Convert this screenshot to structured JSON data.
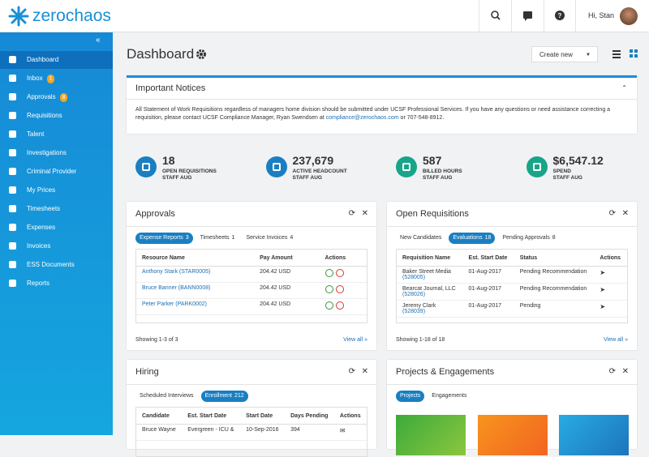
{
  "header": {
    "logo": "zerochaos",
    "greeting": "Hi, Stan"
  },
  "sidebar": {
    "items": [
      {
        "label": "Dashboard",
        "active": true
      },
      {
        "label": "Inbox",
        "badge": 1
      },
      {
        "label": "Approvals",
        "badge": 8
      },
      {
        "label": "Requisitions"
      },
      {
        "label": "Talent"
      },
      {
        "label": "Investigations"
      },
      {
        "label": "Criminal Provider"
      },
      {
        "label": "My Prices"
      },
      {
        "label": "Timesheets"
      },
      {
        "label": "Expenses"
      },
      {
        "label": "Invoices"
      },
      {
        "label": "ESS Documents"
      },
      {
        "label": "Reports"
      }
    ]
  },
  "page": {
    "title": "Dashboard",
    "create_button": "Create new"
  },
  "notices": {
    "title": "Important Notices",
    "text": "All Statement of Work Requisitions regardless of managers home division should be submitted under UCSF Professional Services. If you have any questions or need assistance correcting a requisition, please contact UCSF Compliance Manager, Ryan Swendsen at ",
    "link": "compliance@zerochaos.com",
    "text_end": " or 707-548-8912."
  },
  "stats": [
    {
      "value": 18,
      "label": "OPEN REQUISITIONS",
      "sublabel": "STAFF AUG",
      "color": "#1a7fc1"
    },
    {
      "value": "237,679",
      "label": "ACTIVE HEADCOUNT",
      "sublabel": "STAFF AUG",
      "color": "#1a7fc1"
    },
    {
      "value": 587,
      "label": "BILLED HOURS",
      "sublabel": "STAFF AUG",
      "color": "#17a58a"
    },
    {
      "value": "$6,547.12",
      "label": "SPEND",
      "sublabel": "STAFF AUG",
      "color": "#17a58a"
    }
  ],
  "panels": [
    {
      "title": "Approvals",
      "tabs": [
        {
          "label": "Expense Reports",
          "count": 3,
          "active": true
        },
        {
          "label": "Timesheets",
          "count": 1
        },
        {
          "label": "Service Invoices",
          "count": 4
        }
      ],
      "columns": [
        "Resource Name",
        "Pay Amount",
        "Actions"
      ],
      "rows": [
        [
          "Anthony Stark (STAR0005)",
          "204.42 USD"
        ],
        [
          "Bruce Banner (BANN0008)",
          "204.42 USD"
        ],
        [
          "Peter Parker (PARK0002)",
          "204.42 USD"
        ]
      ],
      "footer": "Showing 1-3 of 3",
      "view_all": "View all »"
    },
    {
      "title": "Open Requisitions",
      "tabs": [
        {
          "label": "New Candidates"
        },
        {
          "label": "Evaluations",
          "count": 18,
          "active": true
        },
        {
          "label": "Pending Approvals",
          "count": 8
        }
      ],
      "columns": [
        "Requisition Name",
        "Est. Start Date",
        "Status",
        "Actions"
      ],
      "rows": [
        [
          {
            "name": "Baker Street Media",
            "id": "(528005)"
          },
          "01-Aug-2017",
          "Pending Recommendation"
        ],
        [
          {
            "name": "Bearcat Journal, LLC",
            "id": "(528026)"
          },
          "01-Aug-2017",
          "Pending Recommendation"
        ],
        [
          {
            "name": "Jeremy Clark",
            "id": "(528039)"
          },
          "01-Aug-2017",
          "Pending"
        ]
      ],
      "footer": "Showing 1-18 of 18",
      "view_all": "View all »"
    },
    {
      "title": "Hiring",
      "tabs": [
        {
          "label": "Scheduled Interviews"
        },
        {
          "label": "Enrollment",
          "count": 212,
          "active": true
        }
      ],
      "columns": [
        "Candidate",
        "Est. Start Date",
        "Start Date",
        "Days Pending",
        "Actions"
      ],
      "rows": [
        [
          "Bruce Wayne",
          "Evergreen - ICU &",
          "10-Sep-2016",
          "394"
        ]
      ]
    },
    {
      "title": "Projects & Engagements",
      "tabs": [
        {
          "label": "Projects",
          "active": true
        },
        {
          "label": "Engagements"
        }
      ]
    }
  ]
}
